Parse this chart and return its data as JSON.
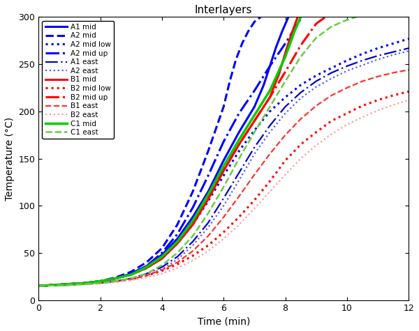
{
  "title": "Interlayers",
  "xlabel": "Time (min)",
  "ylabel": "Temperature (°C)",
  "xlim": [
    0,
    12
  ],
  "ylim": [
    0,
    300
  ],
  "xticks": [
    0,
    2,
    4,
    6,
    8,
    10,
    12
  ],
  "yticks": [
    0,
    50,
    100,
    150,
    200,
    250,
    300
  ],
  "series": [
    {
      "label": "A1 mid",
      "color": "#0000FF",
      "linestyle": "solid",
      "linewidth": 2.2,
      "t": [
        0,
        0.5,
        1.0,
        1.5,
        2.0,
        2.5,
        3.0,
        3.5,
        4.0,
        4.5,
        5.0,
        5.5,
        6.0,
        6.5,
        7.0,
        7.3,
        7.5,
        7.7,
        7.9,
        8.1
      ],
      "T": [
        15,
        16,
        17,
        18,
        20,
        23,
        28,
        36,
        48,
        65,
        88,
        115,
        148,
        178,
        205,
        228,
        248,
        268,
        285,
        300
      ]
    },
    {
      "label": "A2 mid",
      "color": "#0000FF",
      "linestyle": "dashed",
      "linewidth": 2.2,
      "t": [
        0,
        0.5,
        1.0,
        1.5,
        2.0,
        2.5,
        3.0,
        3.5,
        4.0,
        4.5,
        5.0,
        5.5,
        6.0,
        6.2,
        6.4,
        6.6,
        6.8,
        7.0,
        7.2
      ],
      "T": [
        15,
        16,
        17,
        18,
        20,
        24,
        30,
        40,
        55,
        80,
        115,
        158,
        205,
        232,
        255,
        272,
        285,
        295,
        300
      ]
    },
    {
      "label": "A2 mid low",
      "color": "#0000FF",
      "linestyle": "dotted",
      "linewidth": 2.2,
      "t": [
        0,
        0.5,
        1.0,
        1.5,
        2.0,
        2.5,
        3.0,
        3.5,
        4.0,
        4.5,
        5.0,
        5.5,
        6.0,
        6.5,
        7.0,
        7.5,
        8.0,
        8.5,
        9.0,
        9.5,
        10.0,
        10.5,
        11.0,
        11.5,
        12.0
      ],
      "T": [
        15,
        16,
        17,
        18,
        20,
        23,
        27,
        34,
        44,
        60,
        80,
        105,
        132,
        158,
        180,
        200,
        215,
        228,
        238,
        246,
        254,
        261,
        267,
        272,
        277
      ]
    },
    {
      "label": "A2 mid up",
      "color": "#0000FF",
      "linestyle": "dashdot",
      "linewidth": 2.2,
      "t": [
        0,
        0.5,
        1.0,
        1.5,
        2.0,
        2.5,
        3.0,
        3.5,
        4.0,
        4.5,
        5.0,
        5.5,
        6.0,
        6.5,
        7.0,
        7.5,
        8.0,
        8.3,
        8.5
      ],
      "T": [
        15,
        16,
        17,
        18,
        20,
        23,
        28,
        36,
        50,
        70,
        98,
        132,
        168,
        198,
        222,
        248,
        272,
        288,
        298
      ]
    },
    {
      "label": "A1 east",
      "color": "#0000CC",
      "linestyle": "long_dash_dot",
      "linewidth": 1.6,
      "t": [
        0,
        0.5,
        1.0,
        1.5,
        2.0,
        2.5,
        3.0,
        3.5,
        4.0,
        4.5,
        5.0,
        5.5,
        6.0,
        6.5,
        7.0,
        7.5,
        8.0,
        8.5,
        9.0,
        9.5,
        10.0,
        10.5,
        11.0,
        11.5,
        12.0
      ],
      "T": [
        15,
        15.5,
        16,
        17,
        18,
        20,
        23,
        28,
        35,
        46,
        62,
        82,
        108,
        135,
        162,
        185,
        205,
        220,
        232,
        241,
        248,
        254,
        259,
        263,
        267
      ]
    },
    {
      "label": "A2 east",
      "color": "#5555FF",
      "linestyle": "dotted",
      "linewidth": 1.6,
      "t": [
        0,
        0.5,
        1.0,
        1.5,
        2.0,
        2.5,
        3.0,
        3.5,
        4.0,
        4.5,
        5.0,
        5.5,
        6.0,
        6.5,
        7.0,
        7.5,
        8.0,
        8.5,
        9.0,
        9.5,
        10.0,
        10.5,
        11.0,
        11.5,
        12.0
      ],
      "T": [
        15,
        15.5,
        16,
        17,
        18,
        20,
        22,
        26,
        33,
        43,
        58,
        77,
        100,
        127,
        155,
        178,
        198,
        214,
        226,
        235,
        243,
        249,
        255,
        260,
        264
      ]
    },
    {
      "label": "B1 mid",
      "color": "#FF0000",
      "linestyle": "solid",
      "linewidth": 2.2,
      "t": [
        0,
        0.5,
        1.0,
        1.5,
        2.0,
        2.5,
        3.0,
        3.5,
        4.0,
        4.5,
        5.0,
        5.5,
        6.0,
        6.5,
        7.0,
        7.5,
        7.8,
        8.0,
        8.2,
        8.4
      ],
      "T": [
        15,
        16,
        17,
        18,
        20,
        23,
        27,
        34,
        44,
        60,
        80,
        107,
        137,
        165,
        190,
        215,
        240,
        262,
        282,
        300
      ]
    },
    {
      "label": "B2 mid low",
      "color": "#FF0000",
      "linestyle": "dotted",
      "linewidth": 2.2,
      "t": [
        0,
        0.5,
        1.0,
        1.5,
        2.0,
        2.5,
        3.0,
        3.5,
        4.0,
        4.5,
        5.0,
        5.5,
        6.0,
        6.5,
        7.0,
        7.5,
        8.0,
        8.5,
        9.0,
        9.5,
        10.0,
        10.5,
        11.0,
        11.5,
        12.0
      ],
      "T": [
        15,
        16,
        17,
        17.5,
        18.5,
        20,
        22,
        26,
        31,
        38,
        47,
        58,
        72,
        88,
        106,
        126,
        148,
        165,
        178,
        190,
        198,
        206,
        212,
        217,
        221
      ]
    },
    {
      "label": "B2 mid up",
      "color": "#FF0000",
      "linestyle": "dashdot",
      "linewidth": 2.2,
      "t": [
        0,
        0.5,
        1.0,
        1.5,
        2.0,
        2.5,
        3.0,
        3.5,
        4.0,
        4.5,
        5.0,
        5.5,
        6.0,
        6.5,
        7.0,
        7.5,
        8.0,
        8.5,
        9.0,
        9.3
      ],
      "T": [
        15,
        16,
        17,
        18,
        20,
        23,
        27,
        34,
        45,
        62,
        82,
        108,
        138,
        165,
        190,
        215,
        242,
        270,
        293,
        300
      ]
    },
    {
      "label": "B1 east",
      "color": "#FF3333",
      "linestyle": "dashed",
      "linewidth": 1.6,
      "t": [
        0,
        0.5,
        1.0,
        1.5,
        2.0,
        2.5,
        3.0,
        3.5,
        4.0,
        4.5,
        5.0,
        5.5,
        6.0,
        6.5,
        7.0,
        7.5,
        8.0,
        8.5,
        9.0,
        9.5,
        10.0,
        10.5,
        11.0,
        11.5,
        12.0
      ],
      "T": [
        15,
        15.5,
        16,
        17,
        18,
        20,
        22,
        26,
        32,
        40,
        52,
        68,
        88,
        110,
        133,
        155,
        175,
        192,
        206,
        217,
        225,
        232,
        237,
        241,
        244
      ]
    },
    {
      "label": "B2 east",
      "color": "#FF9999",
      "linestyle": "dotted",
      "linewidth": 1.6,
      "t": [
        0,
        0.5,
        1.0,
        1.5,
        2.0,
        2.5,
        3.0,
        3.5,
        4.0,
        4.5,
        5.0,
        5.5,
        6.0,
        6.5,
        7.0,
        7.5,
        8.0,
        8.5,
        9.0,
        9.5,
        10.0,
        10.5,
        11.0,
        11.5,
        12.0
      ],
      "T": [
        15,
        15.5,
        16,
        16.5,
        17.5,
        19,
        21,
        24,
        28,
        34,
        42,
        52,
        65,
        80,
        97,
        115,
        133,
        150,
        164,
        176,
        186,
        194,
        201,
        207,
        212
      ]
    },
    {
      "label": "C1 mid",
      "color": "#00CC00",
      "linestyle": "solid",
      "linewidth": 2.5,
      "t": [
        0,
        0.5,
        1.0,
        1.5,
        2.0,
        2.5,
        3.0,
        3.5,
        4.0,
        4.5,
        5.0,
        5.5,
        6.0,
        6.5,
        7.0,
        7.5,
        8.0,
        8.3,
        8.5
      ],
      "T": [
        15,
        16,
        17,
        18,
        20,
        23,
        27,
        35,
        46,
        62,
        84,
        112,
        142,
        170,
        196,
        222,
        258,
        285,
        300
      ]
    },
    {
      "label": "C1 east",
      "color": "#66CC44",
      "linestyle": "dashed",
      "linewidth": 1.8,
      "t": [
        0,
        0.5,
        1.0,
        1.5,
        2.0,
        2.5,
        3.0,
        3.5,
        4.0,
        4.5,
        5.0,
        5.5,
        6.0,
        6.5,
        7.0,
        7.5,
        8.0,
        8.5,
        9.0,
        9.5,
        10.0,
        10.3
      ],
      "T": [
        15,
        15.5,
        16,
        17,
        18,
        20,
        23,
        28,
        37,
        50,
        68,
        92,
        120,
        150,
        178,
        205,
        232,
        258,
        278,
        290,
        297,
        300
      ]
    }
  ]
}
